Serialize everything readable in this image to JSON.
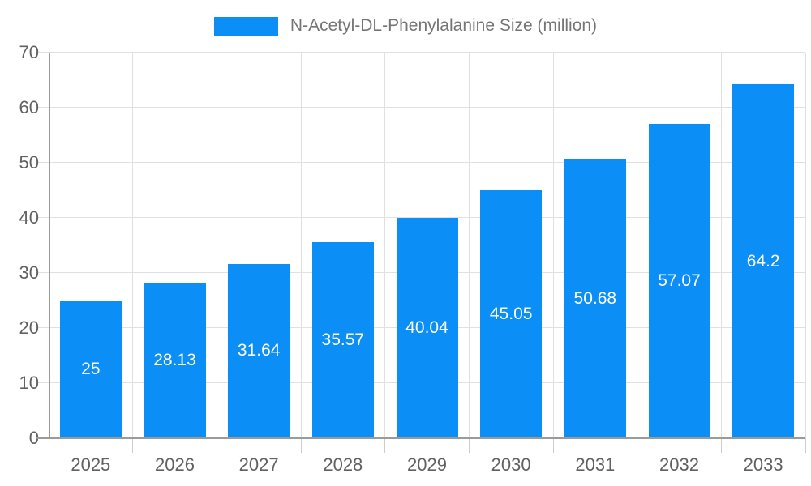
{
  "legend": {
    "label": "N-Acetyl-DL-Phenylalanine Size (million)"
  },
  "colors": {
    "bar": "#0b8ef5",
    "grid": "#e0e0e0",
    "axis": "#9a9a9a",
    "x_tick": "#cccccc",
    "tick_label": "#616161",
    "legend_text": "#757575",
    "bar_label": "#ffffff",
    "background": "#ffffff"
  },
  "chart_data": {
    "type": "bar",
    "title": "N-Acetyl-DL-Phenylalanine Size (million)",
    "categories": [
      "2025",
      "2026",
      "2027",
      "2028",
      "2029",
      "2030",
      "2031",
      "2032",
      "2033"
    ],
    "values": [
      25,
      28.13,
      31.64,
      35.57,
      40.04,
      45.05,
      50.68,
      57.07,
      64.2
    ],
    "value_labels": [
      "25",
      "28.13",
      "31.64",
      "35.57",
      "40.04",
      "45.05",
      "50.68",
      "57.07",
      "64.2"
    ],
    "xlabel": "",
    "ylabel": "",
    "ylim": [
      0,
      70
    ],
    "yticks": [
      0,
      10,
      20,
      30,
      40,
      50,
      60,
      70
    ],
    "grid": true,
    "legend_position": "top",
    "value_label_position": "center-of-bar"
  }
}
